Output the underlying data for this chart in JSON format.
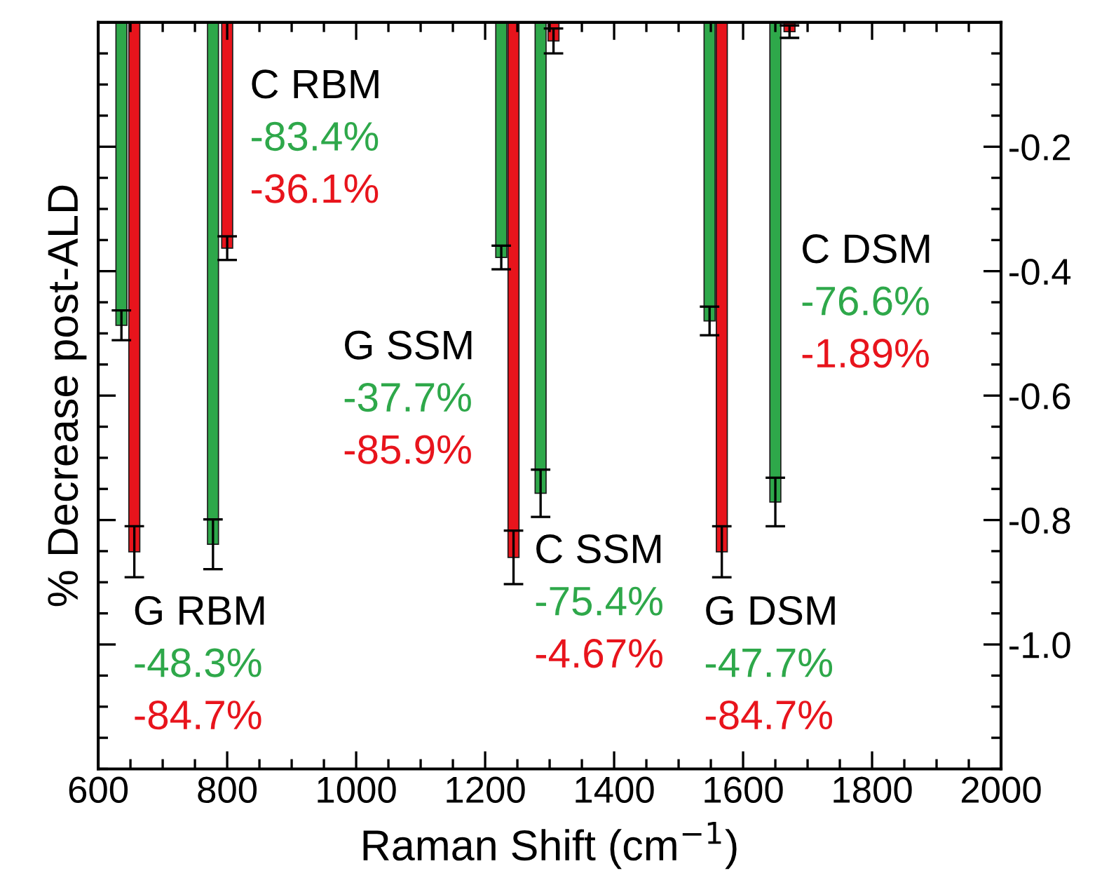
{
  "chart_data": {
    "type": "bar",
    "xlabel": "Raman Shift (cm$^{−1}$)",
    "ylabel": "% Decrease post-ALD",
    "xlim": [
      600,
      2000
    ],
    "xticks": [
      600,
      800,
      1000,
      1200,
      1400,
      1600,
      1800,
      2000
    ],
    "ylim": [
      -1.2,
      0
    ],
    "yticks": [
      -0.2,
      -0.4,
      -0.6,
      -0.8,
      {
        "value": -1,
        "label": "-1.0"
      }
    ],
    "grid": false,
    "legend": false,
    "series": [
      {
        "color": "#2ea84a",
        "x": [
          636,
          778,
          1225,
          1286,
          1548,
          1650
        ],
        "values": [
          -0.487,
          -0.839,
          -0.378,
          -0.757,
          -0.48,
          -0.771
        ],
        "errors": [
          0.024,
          0.04,
          0.019,
          0.038,
          0.023,
          0.039
        ]
      },
      {
        "color": "#e8141c",
        "x": [
          656,
          800,
          1244,
          1306,
          1567,
          1672
        ],
        "values": [
          -0.851,
          -0.363,
          -0.86,
          -0.03,
          -0.851,
          -0.015
        ],
        "errors": [
          0.041,
          0.019,
          0.043,
          0.02,
          0.041,
          0.01
        ]
      }
    ],
    "annotations": [
      "G RBM",
      "-48.3%",
      "-84.7%",
      "C RBM",
      "-83.4%",
      "-36.1%",
      "G SSM",
      "-37.7%",
      "-85.9%",
      "C SSM",
      "-75.4%",
      "-4.67%",
      "G DSM",
      "-47.7%",
      "-84.7%",
      "C DSM",
      "-76.6%",
      "-1.89%"
    ]
  }
}
